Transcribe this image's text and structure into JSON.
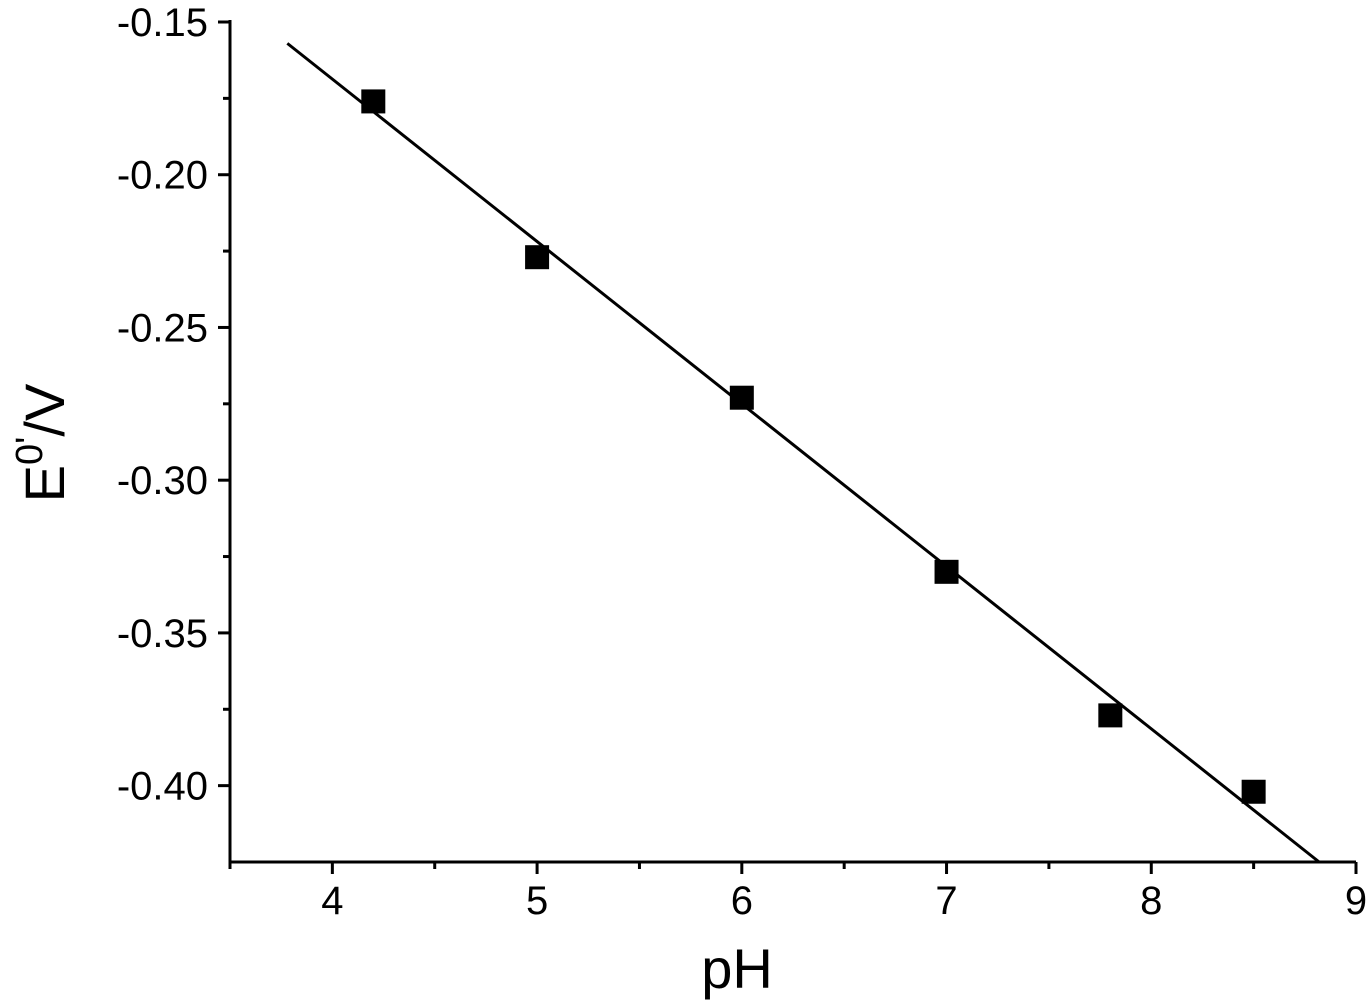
{
  "chart_data": {
    "type": "scatter",
    "xlabel": "pH",
    "ylabel": {
      "base": "E",
      "sup": "0'",
      "rest": "/V"
    },
    "xlim": [
      3.5,
      9
    ],
    "ylim": [
      -0.425,
      -0.15
    ],
    "x_ticks": [
      {
        "value": 4,
        "label": "4"
      },
      {
        "value": 5,
        "label": "5"
      },
      {
        "value": 6,
        "label": "6"
      },
      {
        "value": 7,
        "label": "7"
      },
      {
        "value": 8,
        "label": "8"
      },
      {
        "value": 9,
        "label": "9"
      }
    ],
    "x_minor_ticks": [
      3.5,
      4.5,
      5.5,
      6.5,
      7.5,
      8.5
    ],
    "y_ticks": [
      {
        "value": -0.15,
        "label": "-0.15"
      },
      {
        "value": -0.2,
        "label": "-0.20"
      },
      {
        "value": -0.25,
        "label": "-0.25"
      },
      {
        "value": -0.3,
        "label": "-0.30"
      },
      {
        "value": -0.35,
        "label": "-0.35"
      },
      {
        "value": -0.4,
        "label": "-0.40"
      }
    ],
    "y_minor_ticks": [
      -0.175,
      -0.225,
      -0.275,
      -0.325,
      -0.375
    ],
    "series": [
      {
        "marker": "square",
        "color": "#000000",
        "points": [
          {
            "x": 4.2,
            "y": -0.176
          },
          {
            "x": 5.0,
            "y": -0.227
          },
          {
            "x": 6.0,
            "y": -0.273
          },
          {
            "x": 7.0,
            "y": -0.33
          },
          {
            "x": 7.8,
            "y": -0.377
          },
          {
            "x": 8.5,
            "y": -0.402
          }
        ]
      }
    ],
    "fit_line": {
      "color": "#000000",
      "x_start": 3.78,
      "y_start": -0.157,
      "x_end": 8.82,
      "y_end": -0.425
    },
    "grid": false,
    "legend": "none"
  }
}
